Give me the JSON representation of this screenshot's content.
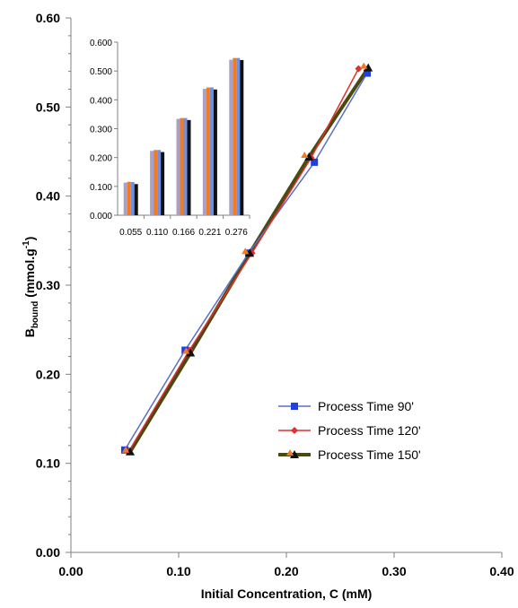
{
  "chart_data": [
    {
      "type": "line",
      "xlabel_main": "Initial Concentration, C (mM)",
      "ylabel": {
        "prefix": "B",
        "subscript": "bound",
        "unit_open": " (mmol.g",
        "unit_sup": "-1",
        "unit_close": ")"
      },
      "xlim": [
        0.0,
        0.4
      ],
      "ylim": [
        0.0,
        0.6
      ],
      "x_ticks": [
        "0.00",
        "0.10",
        "0.20",
        "0.30",
        "0.40"
      ],
      "y_ticks": [
        "0.00",
        "0.10",
        "0.20",
        "0.30",
        "0.40",
        "0.50",
        "0.60"
      ],
      "x_tick_values": [
        0.0,
        0.1,
        0.2,
        0.3,
        0.4
      ],
      "y_tick_values": [
        0.0,
        0.1,
        0.2,
        0.3,
        0.4,
        0.5,
        0.6
      ],
      "grid": false,
      "legend_position": "lower-right",
      "series": [
        {
          "name": "Process Time 90'",
          "color": "#5b6fc4",
          "marker": "square",
          "marker_color": "#1f3fe0",
          "x": [
            0.05,
            0.106,
            0.165,
            0.226,
            0.275
          ],
          "y": [
            0.115,
            0.227,
            0.336,
            0.438,
            0.538
          ]
        },
        {
          "name": "Process Time 120'",
          "color": "#e03030",
          "marker": "diamond",
          "marker_color": "#e03030",
          "x": [
            0.054,
            0.11,
            0.168,
            0.223,
            0.267
          ],
          "y": [
            0.114,
            0.227,
            0.336,
            0.443,
            0.543
          ]
        },
        {
          "name": "Process Time 150'",
          "color": "#4a4a10",
          "marker": "triangle",
          "marker_color": "#111111",
          "marker_fill_2": "#f07b22",
          "x": [
            0.055,
            0.111,
            0.166,
            0.221,
            0.276
          ],
          "y": [
            0.113,
            0.224,
            0.336,
            0.444,
            0.544
          ]
        }
      ]
    },
    {
      "type": "bar",
      "categories": [
        "0.055",
        "0.110",
        "0.166",
        "0.221",
        "0.276"
      ],
      "ylim": [
        0.0,
        0.6
      ],
      "y_ticks": [
        "0.000",
        "0.100",
        "0.200",
        "0.300",
        "0.400",
        "0.500",
        "0.600"
      ],
      "y_tick_values": [
        0.0,
        0.1,
        0.2,
        0.3,
        0.4,
        0.5,
        0.6
      ],
      "series": [
        {
          "color": "#a9a0c8",
          "values": [
            0.113,
            0.223,
            0.334,
            0.438,
            0.539
          ]
        },
        {
          "color": "#f07b22",
          "values": [
            0.116,
            0.226,
            0.337,
            0.443,
            0.545
          ]
        },
        {
          "color": "#6f8fe0",
          "values": [
            0.115,
            0.226,
            0.337,
            0.443,
            0.545
          ]
        },
        {
          "color": "#111111",
          "values": [
            0.108,
            0.219,
            0.33,
            0.436,
            0.538
          ]
        }
      ]
    }
  ]
}
